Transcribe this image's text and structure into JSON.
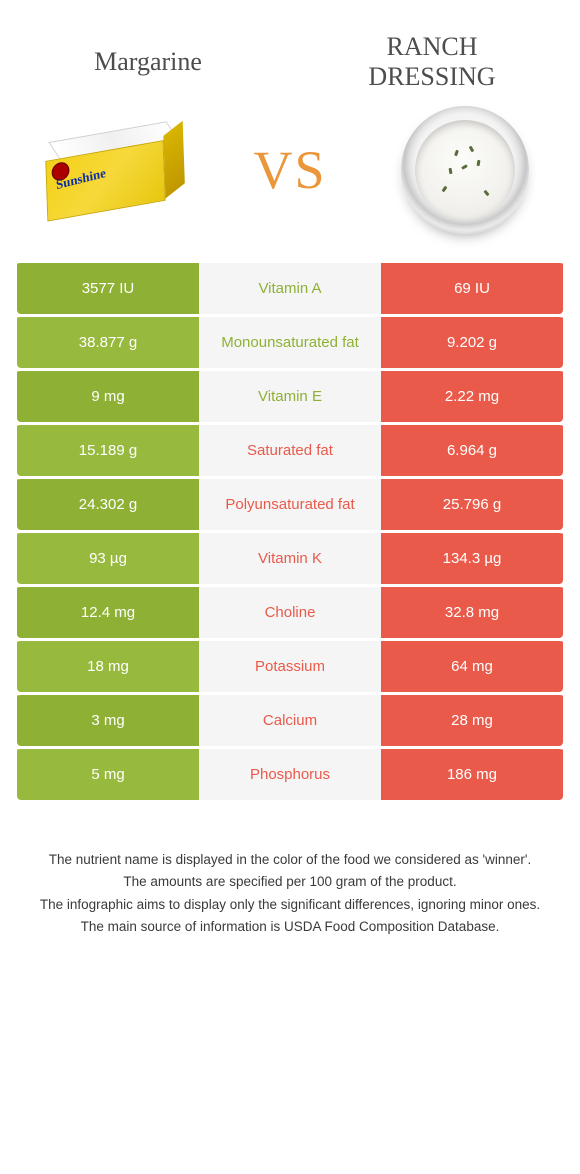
{
  "colors": {
    "left_cell": "#8eb135",
    "left_cell_alt": "#97ba3e",
    "mid_cell": "#f5f5f5",
    "right_cell": "#ea5a4a",
    "label_left_winner": "#8eb135",
    "label_right_winner": "#ea5a4a",
    "vs_color": "#e9973a",
    "title_color": "#4d4d4d"
  },
  "left_food": "Margarine",
  "right_food": "RANCH DRESSING",
  "vs_text": "VS",
  "rows": [
    {
      "left": "3577 IU",
      "label": "Vitamin A",
      "right": "69 IU",
      "winner": "left"
    },
    {
      "left": "38.877 g",
      "label": "Monounsaturated fat",
      "right": "9.202 g",
      "winner": "left"
    },
    {
      "left": "9 mg",
      "label": "Vitamin E",
      "right": "2.22 mg",
      "winner": "left"
    },
    {
      "left": "15.189 g",
      "label": "Saturated fat",
      "right": "6.964 g",
      "winner": "right"
    },
    {
      "left": "24.302 g",
      "label": "Polyunsaturated fat",
      "right": "25.796 g",
      "winner": "right"
    },
    {
      "left": "93 µg",
      "label": "Vitamin K",
      "right": "134.3 µg",
      "winner": "right"
    },
    {
      "left": "12.4 mg",
      "label": "Choline",
      "right": "32.8 mg",
      "winner": "right"
    },
    {
      "left": "18 mg",
      "label": "Potassium",
      "right": "64 mg",
      "winner": "right"
    },
    {
      "left": "3 mg",
      "label": "Calcium",
      "right": "28 mg",
      "winner": "right"
    },
    {
      "left": "5 mg",
      "label": "Phosphorus",
      "right": "186 mg",
      "winner": "right"
    }
  ],
  "footer_lines": [
    "The nutrient name is displayed in the color of the food we considered as 'winner'.",
    "The amounts are specified per 100 gram of the product.",
    "The infographic aims to display only the significant differences, ignoring minor ones.",
    "The main source of information is USDA Food Composition Database."
  ]
}
